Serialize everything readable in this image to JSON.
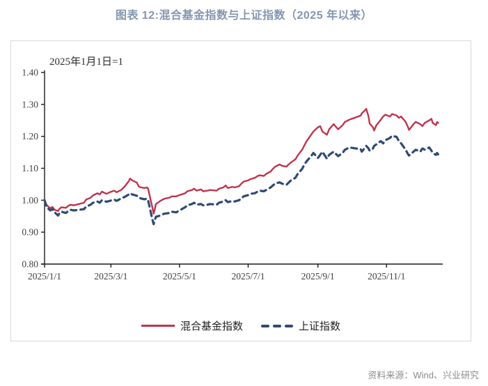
{
  "title": "图表 12:混合基金指数与上证指数（2025 年以来）",
  "annotation": "2025年1月1日=1",
  "source": "资料来源：Wind、兴业研究",
  "colors": {
    "title_text": "#8496B0",
    "fund_line": "#C0334D",
    "sse_line": "#2F4A73",
    "axis": "#1a1a1a",
    "tick_label": "#404040",
    "frame_border": "#D9D9D9",
    "source_text": "#8C8C8C"
  },
  "legend": {
    "fund_label": "混合基金指数",
    "sse_label": "上证指数"
  },
  "chart_data": {
    "type": "line",
    "title": "混合基金指数与上证指数（2025 年以来）",
    "note": "2025年1月1日=1",
    "xlabel": "",
    "ylabel": "",
    "ylim": [
      0.8,
      1.4
    ],
    "y_ticks": [
      "1.40",
      "1.30",
      "1.20",
      "1.10",
      "1.00",
      "0.90",
      "0.80"
    ],
    "x_ticks": [
      "2025/1/1",
      "2025/3/1",
      "2025/5/1",
      "2025/7/1",
      "2025/9/1",
      "2025/11/1"
    ],
    "xlim_days": [
      0,
      354
    ],
    "grid": false,
    "legend_position": "bottom",
    "series": [
      {
        "name": "混合基金指数",
        "color": "#C0334D",
        "style": "solid",
        "points": [
          [
            "2025/1/1",
            1.0
          ],
          [
            "2025/1/2",
            0.992
          ],
          [
            "2025/1/3",
            0.984
          ],
          [
            "2025/1/6",
            0.975
          ],
          [
            "2025/1/8",
            0.979
          ],
          [
            "2025/1/10",
            0.97
          ],
          [
            "2025/1/13",
            0.966
          ],
          [
            "2025/1/14",
            0.972
          ],
          [
            "2025/1/16",
            0.978
          ],
          [
            "2025/1/20",
            0.976
          ],
          [
            "2025/1/22",
            0.982
          ],
          [
            "2025/1/24",
            0.986
          ],
          [
            "2025/1/27",
            0.984
          ],
          [
            "2025/2/5",
            0.992
          ],
          [
            "2025/2/7",
            1.002
          ],
          [
            "2025/2/11",
            1.008
          ],
          [
            "2025/2/13",
            1.015
          ],
          [
            "2025/2/17",
            1.022
          ],
          [
            "2025/2/19",
            1.018
          ],
          [
            "2025/2/21",
            1.027
          ],
          [
            "2025/2/25",
            1.02
          ],
          [
            "2025/2/28",
            1.025
          ],
          [
            "2025/3/4",
            1.03
          ],
          [
            "2025/3/6",
            1.025
          ],
          [
            "2025/3/10",
            1.032
          ],
          [
            "2025/3/13",
            1.042
          ],
          [
            "2025/3/17",
            1.06
          ],
          [
            "2025/3/18",
            1.068
          ],
          [
            "2025/3/20",
            1.062
          ],
          [
            "2025/3/24",
            1.055
          ],
          [
            "2025/3/26",
            1.042
          ],
          [
            "2025/3/28",
            1.04
          ],
          [
            "2025/3/31",
            1.038
          ],
          [
            "2025/4/2",
            1.04
          ],
          [
            "2025/4/3",
            1.036
          ],
          [
            "2025/4/7",
            0.975
          ],
          [
            "2025/4/8",
            0.958
          ],
          [
            "2025/4/9",
            0.972
          ],
          [
            "2025/4/10",
            0.988
          ],
          [
            "2025/4/14",
            0.998
          ],
          [
            "2025/4/16",
            1.002
          ],
          [
            "2025/4/18",
            1.005
          ],
          [
            "2025/4/22",
            1.008
          ],
          [
            "2025/4/24",
            1.012
          ],
          [
            "2025/4/28",
            1.012
          ],
          [
            "2025/4/30",
            1.015
          ],
          [
            "2025/5/6",
            1.022
          ],
          [
            "2025/5/8",
            1.028
          ],
          [
            "2025/5/12",
            1.032
          ],
          [
            "2025/5/14",
            1.036
          ],
          [
            "2025/5/16",
            1.03
          ],
          [
            "2025/5/20",
            1.034
          ],
          [
            "2025/5/22",
            1.028
          ],
          [
            "2025/5/26",
            1.03
          ],
          [
            "2025/5/28",
            1.032
          ],
          [
            "2025/6/3",
            1.03
          ],
          [
            "2025/6/5",
            1.036
          ],
          [
            "2025/6/9",
            1.04
          ],
          [
            "2025/6/11",
            1.046
          ],
          [
            "2025/6/13",
            1.038
          ],
          [
            "2025/6/17",
            1.042
          ],
          [
            "2025/6/19",
            1.04
          ],
          [
            "2025/6/23",
            1.044
          ],
          [
            "2025/6/25",
            1.052
          ],
          [
            "2025/6/27",
            1.058
          ],
          [
            "2025/7/1",
            1.062
          ],
          [
            "2025/7/3",
            1.066
          ],
          [
            "2025/7/7",
            1.07
          ],
          [
            "2025/7/9",
            1.075
          ],
          [
            "2025/7/11",
            1.078
          ],
          [
            "2025/7/15",
            1.076
          ],
          [
            "2025/7/17",
            1.082
          ],
          [
            "2025/7/21",
            1.09
          ],
          [
            "2025/7/23",
            1.098
          ],
          [
            "2025/7/25",
            1.105
          ],
          [
            "2025/7/29",
            1.112
          ],
          [
            "2025/7/31",
            1.108
          ],
          [
            "2025/8/4",
            1.105
          ],
          [
            "2025/8/6",
            1.112
          ],
          [
            "2025/8/8",
            1.118
          ],
          [
            "2025/8/12",
            1.128
          ],
          [
            "2025/8/14",
            1.14
          ],
          [
            "2025/8/18",
            1.158
          ],
          [
            "2025/8/20",
            1.172
          ],
          [
            "2025/8/22",
            1.185
          ],
          [
            "2025/8/26",
            1.205
          ],
          [
            "2025/8/28",
            1.215
          ],
          [
            "2025/9/1",
            1.228
          ],
          [
            "2025/9/3",
            1.232
          ],
          [
            "2025/9/5",
            1.215
          ],
          [
            "2025/9/9",
            1.205
          ],
          [
            "2025/9/11",
            1.222
          ],
          [
            "2025/9/15",
            1.238
          ],
          [
            "2025/9/17",
            1.23
          ],
          [
            "2025/9/19",
            1.222
          ],
          [
            "2025/9/23",
            1.235
          ],
          [
            "2025/9/25",
            1.245
          ],
          [
            "2025/9/29",
            1.252
          ],
          [
            "2025/10/9",
            1.265
          ],
          [
            "2025/10/10",
            1.272
          ],
          [
            "2025/10/13",
            1.282
          ],
          [
            "2025/10/14",
            1.286
          ],
          [
            "2025/10/16",
            1.262
          ],
          [
            "2025/10/17",
            1.24
          ],
          [
            "2025/10/20",
            1.228
          ],
          [
            "2025/10/21",
            1.218
          ],
          [
            "2025/10/23",
            1.235
          ],
          [
            "2025/10/27",
            1.252
          ],
          [
            "2025/10/29",
            1.262
          ],
          [
            "2025/10/31",
            1.268
          ],
          [
            "2025/11/4",
            1.262
          ],
          [
            "2025/11/6",
            1.27
          ],
          [
            "2025/11/10",
            1.265
          ],
          [
            "2025/11/12",
            1.258
          ],
          [
            "2025/11/14",
            1.262
          ],
          [
            "2025/11/18",
            1.245
          ],
          [
            "2025/11/20",
            1.23
          ],
          [
            "2025/11/21",
            1.22
          ],
          [
            "2025/11/25",
            1.238
          ],
          [
            "2025/11/27",
            1.245
          ],
          [
            "2025/12/1",
            1.238
          ],
          [
            "2025/12/3",
            1.232
          ],
          [
            "2025/12/5",
            1.242
          ],
          [
            "2025/12/9",
            1.25
          ],
          [
            "2025/12/11",
            1.255
          ],
          [
            "2025/12/12",
            1.242
          ],
          [
            "2025/12/15",
            1.235
          ],
          [
            "2025/12/16",
            1.245
          ],
          [
            "2025/12/17",
            1.242
          ]
        ]
      },
      {
        "name": "上证指数",
        "color": "#2F4A73",
        "style": "dashed",
        "points": [
          [
            "2025/1/1",
            1.0
          ],
          [
            "2025/1/2",
            0.988
          ],
          [
            "2025/1/3",
            0.978
          ],
          [
            "2025/1/6",
            0.968
          ],
          [
            "2025/1/8",
            0.972
          ],
          [
            "2025/1/10",
            0.962
          ],
          [
            "2025/1/13",
            0.952
          ],
          [
            "2025/1/14",
            0.958
          ],
          [
            "2025/1/16",
            0.964
          ],
          [
            "2025/1/20",
            0.96
          ],
          [
            "2025/1/22",
            0.966
          ],
          [
            "2025/1/24",
            0.97
          ],
          [
            "2025/1/27",
            0.968
          ],
          [
            "2025/2/5",
            0.972
          ],
          [
            "2025/2/7",
            0.98
          ],
          [
            "2025/2/11",
            0.986
          ],
          [
            "2025/2/13",
            0.992
          ],
          [
            "2025/2/17",
            0.996
          ],
          [
            "2025/2/19",
            0.992
          ],
          [
            "2025/2/21",
            1.0
          ],
          [
            "2025/2/25",
            0.995
          ],
          [
            "2025/2/28",
            0.998
          ],
          [
            "2025/3/4",
            1.002
          ],
          [
            "2025/3/6",
            0.998
          ],
          [
            "2025/3/10",
            1.005
          ],
          [
            "2025/3/13",
            1.01
          ],
          [
            "2025/3/17",
            1.018
          ],
          [
            "2025/3/18",
            1.022
          ],
          [
            "2025/3/20",
            1.018
          ],
          [
            "2025/3/24",
            1.014
          ],
          [
            "2025/3/26",
            1.008
          ],
          [
            "2025/3/28",
            1.005
          ],
          [
            "2025/3/31",
            1.003
          ],
          [
            "2025/4/2",
            1.005
          ],
          [
            "2025/4/3",
            1.0
          ],
          [
            "2025/4/7",
            0.938
          ],
          [
            "2025/4/8",
            0.925
          ],
          [
            "2025/4/9",
            0.938
          ],
          [
            "2025/4/10",
            0.948
          ],
          [
            "2025/4/14",
            0.952
          ],
          [
            "2025/4/16",
            0.956
          ],
          [
            "2025/4/18",
            0.958
          ],
          [
            "2025/4/22",
            0.96
          ],
          [
            "2025/4/24",
            0.964
          ],
          [
            "2025/4/28",
            0.962
          ],
          [
            "2025/4/30",
            0.966
          ],
          [
            "2025/5/6",
            0.978
          ],
          [
            "2025/5/8",
            0.984
          ],
          [
            "2025/5/12",
            0.988
          ],
          [
            "2025/5/14",
            0.992
          ],
          [
            "2025/5/16",
            0.986
          ],
          [
            "2025/5/20",
            0.988
          ],
          [
            "2025/5/22",
            0.984
          ],
          [
            "2025/5/26",
            0.986
          ],
          [
            "2025/5/28",
            0.988
          ],
          [
            "2025/6/3",
            0.986
          ],
          [
            "2025/6/5",
            0.992
          ],
          [
            "2025/6/9",
            0.996
          ],
          [
            "2025/6/11",
            1.0
          ],
          [
            "2025/6/13",
            0.994
          ],
          [
            "2025/6/17",
            0.998
          ],
          [
            "2025/6/19",
            0.996
          ],
          [
            "2025/6/23",
            1.0
          ],
          [
            "2025/6/25",
            1.006
          ],
          [
            "2025/6/27",
            1.012
          ],
          [
            "2025/7/1",
            1.016
          ],
          [
            "2025/7/3",
            1.02
          ],
          [
            "2025/7/7",
            1.022
          ],
          [
            "2025/7/9",
            1.026
          ],
          [
            "2025/7/11",
            1.03
          ],
          [
            "2025/7/15",
            1.028
          ],
          [
            "2025/7/17",
            1.032
          ],
          [
            "2025/7/21",
            1.04
          ],
          [
            "2025/7/23",
            1.046
          ],
          [
            "2025/7/25",
            1.052
          ],
          [
            "2025/7/29",
            1.056
          ],
          [
            "2025/7/31",
            1.052
          ],
          [
            "2025/8/4",
            1.048
          ],
          [
            "2025/8/6",
            1.055
          ],
          [
            "2025/8/8",
            1.062
          ],
          [
            "2025/8/12",
            1.07
          ],
          [
            "2025/8/14",
            1.082
          ],
          [
            "2025/8/18",
            1.098
          ],
          [
            "2025/8/20",
            1.112
          ],
          [
            "2025/8/22",
            1.122
          ],
          [
            "2025/8/26",
            1.138
          ],
          [
            "2025/8/28",
            1.148
          ],
          [
            "2025/9/1",
            1.132
          ],
          [
            "2025/9/3",
            1.142
          ],
          [
            "2025/9/5",
            1.152
          ],
          [
            "2025/9/9",
            1.13
          ],
          [
            "2025/9/11",
            1.142
          ],
          [
            "2025/9/15",
            1.152
          ],
          [
            "2025/9/17",
            1.145
          ],
          [
            "2025/9/19",
            1.138
          ],
          [
            "2025/9/23",
            1.148
          ],
          [
            "2025/9/25",
            1.158
          ],
          [
            "2025/9/29",
            1.165
          ],
          [
            "2025/10/9",
            1.16
          ],
          [
            "2025/10/10",
            1.152
          ],
          [
            "2025/10/13",
            1.165
          ],
          [
            "2025/10/14",
            1.17
          ],
          [
            "2025/10/16",
            1.162
          ],
          [
            "2025/10/17",
            1.155
          ],
          [
            "2025/10/20",
            1.162
          ],
          [
            "2025/10/21",
            1.17
          ],
          [
            "2025/10/23",
            1.175
          ],
          [
            "2025/10/27",
            1.185
          ],
          [
            "2025/10/29",
            1.178
          ],
          [
            "2025/10/31",
            1.188
          ],
          [
            "2025/11/4",
            1.195
          ],
          [
            "2025/11/6",
            1.202
          ],
          [
            "2025/11/10",
            1.198
          ],
          [
            "2025/11/12",
            1.185
          ],
          [
            "2025/11/14",
            1.178
          ],
          [
            "2025/11/18",
            1.158
          ],
          [
            "2025/11/20",
            1.145
          ],
          [
            "2025/11/21",
            1.14
          ],
          [
            "2025/11/25",
            1.152
          ],
          [
            "2025/11/27",
            1.158
          ],
          [
            "2025/12/1",
            1.152
          ],
          [
            "2025/12/3",
            1.162
          ],
          [
            "2025/12/5",
            1.158
          ],
          [
            "2025/12/9",
            1.165
          ],
          [
            "2025/12/11",
            1.155
          ],
          [
            "2025/12/12",
            1.148
          ],
          [
            "2025/12/15",
            1.142
          ],
          [
            "2025/12/16",
            1.148
          ],
          [
            "2025/12/17",
            1.143
          ]
        ]
      }
    ]
  }
}
